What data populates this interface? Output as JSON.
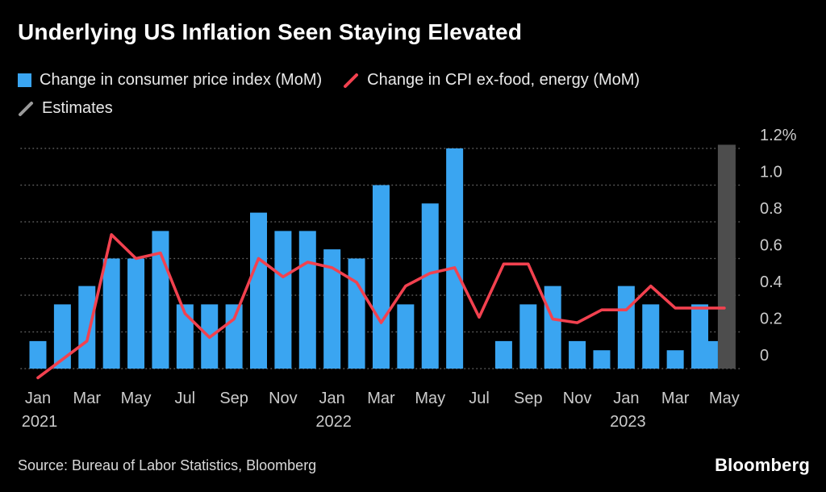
{
  "chart_data": {
    "type": "bar+line",
    "title": "Underlying US Inflation Seen Staying Elevated",
    "xlabel": "",
    "ylabel": "",
    "ylim": [
      0,
      1.2
    ],
    "yticks": [
      0,
      0.2,
      0.4,
      0.6,
      0.8,
      1.0,
      1.2
    ],
    "ytick_labels": [
      "0",
      "0.2",
      "0.4",
      "0.6",
      "0.8",
      "1.0",
      "1.2%"
    ],
    "grid": "dotted-horizontal",
    "legend_position": "top-left",
    "months": [
      "Jan 2021",
      "Feb 2021",
      "Mar 2021",
      "Apr 2021",
      "May 2021",
      "Jun 2021",
      "Jul 2021",
      "Aug 2021",
      "Sep 2021",
      "Oct 2021",
      "Nov 2021",
      "Dec 2021",
      "Jan 2022",
      "Feb 2022",
      "Mar 2022",
      "Apr 2022",
      "May 2022",
      "Jun 2022",
      "Jul 2022",
      "Aug 2022",
      "Sep 2022",
      "Oct 2022",
      "Nov 2022",
      "Dec 2022",
      "Jan 2023",
      "Feb 2023",
      "Mar 2023",
      "Apr 2023",
      "May 2023"
    ],
    "series": [
      {
        "name": "Change in consumer price index (MoM)",
        "type": "bar",
        "values": [
          0.15,
          0.35,
          0.45,
          0.6,
          0.6,
          0.75,
          0.35,
          0.35,
          0.35,
          0.85,
          0.75,
          0.75,
          0.65,
          0.6,
          1.0,
          0.35,
          0.9,
          1.2,
          0.0,
          0.15,
          0.35,
          0.45,
          0.15,
          0.1,
          0.45,
          0.35,
          0.1,
          0.35,
          0.15
        ]
      },
      {
        "name": "Change in CPI ex-food, energy (MoM)",
        "type": "line",
        "values": [
          -0.05,
          0.05,
          0.15,
          0.73,
          0.6,
          0.63,
          0.3,
          0.17,
          0.27,
          0.6,
          0.5,
          0.58,
          0.55,
          0.47,
          0.25,
          0.45,
          0.52,
          0.55,
          0.28,
          0.57,
          0.57,
          0.27,
          0.25,
          0.32,
          0.32,
          0.45,
          0.33,
          0.33,
          0.33
        ]
      }
    ],
    "estimate_band": {
      "label": "Estimates",
      "month": "May 2023",
      "top": 1.22
    },
    "xticks": [
      {
        "i": 0,
        "m": "Jan",
        "y": "2021"
      },
      {
        "i": 2,
        "m": "Mar"
      },
      {
        "i": 4,
        "m": "May"
      },
      {
        "i": 6,
        "m": "Jul"
      },
      {
        "i": 8,
        "m": "Sep"
      },
      {
        "i": 10,
        "m": "Nov"
      },
      {
        "i": 12,
        "m": "Jan",
        "y": "2022"
      },
      {
        "i": 14,
        "m": "Mar"
      },
      {
        "i": 16,
        "m": "May"
      },
      {
        "i": 18,
        "m": "Jul"
      },
      {
        "i": 20,
        "m": "Sep"
      },
      {
        "i": 22,
        "m": "Nov"
      },
      {
        "i": 24,
        "m": "Jan",
        "y": "2023"
      },
      {
        "i": 26,
        "m": "Mar"
      },
      {
        "i": 28,
        "m": "May"
      }
    ]
  },
  "colors": {
    "background": "#000000",
    "bar": "#3aa5f1",
    "line": "#f2414f",
    "estimate_band": "#4d4d4d",
    "estimate_legend": "#9a9a9a",
    "gridline": "#5c5c5c",
    "axis_text": "#cbcbcb",
    "title_text": "#ffffff",
    "legend_text": "#e9e9e9"
  },
  "footer": {
    "source": "Source: Bureau of Labor Statistics, Bloomberg",
    "brand": "Bloomberg"
  }
}
